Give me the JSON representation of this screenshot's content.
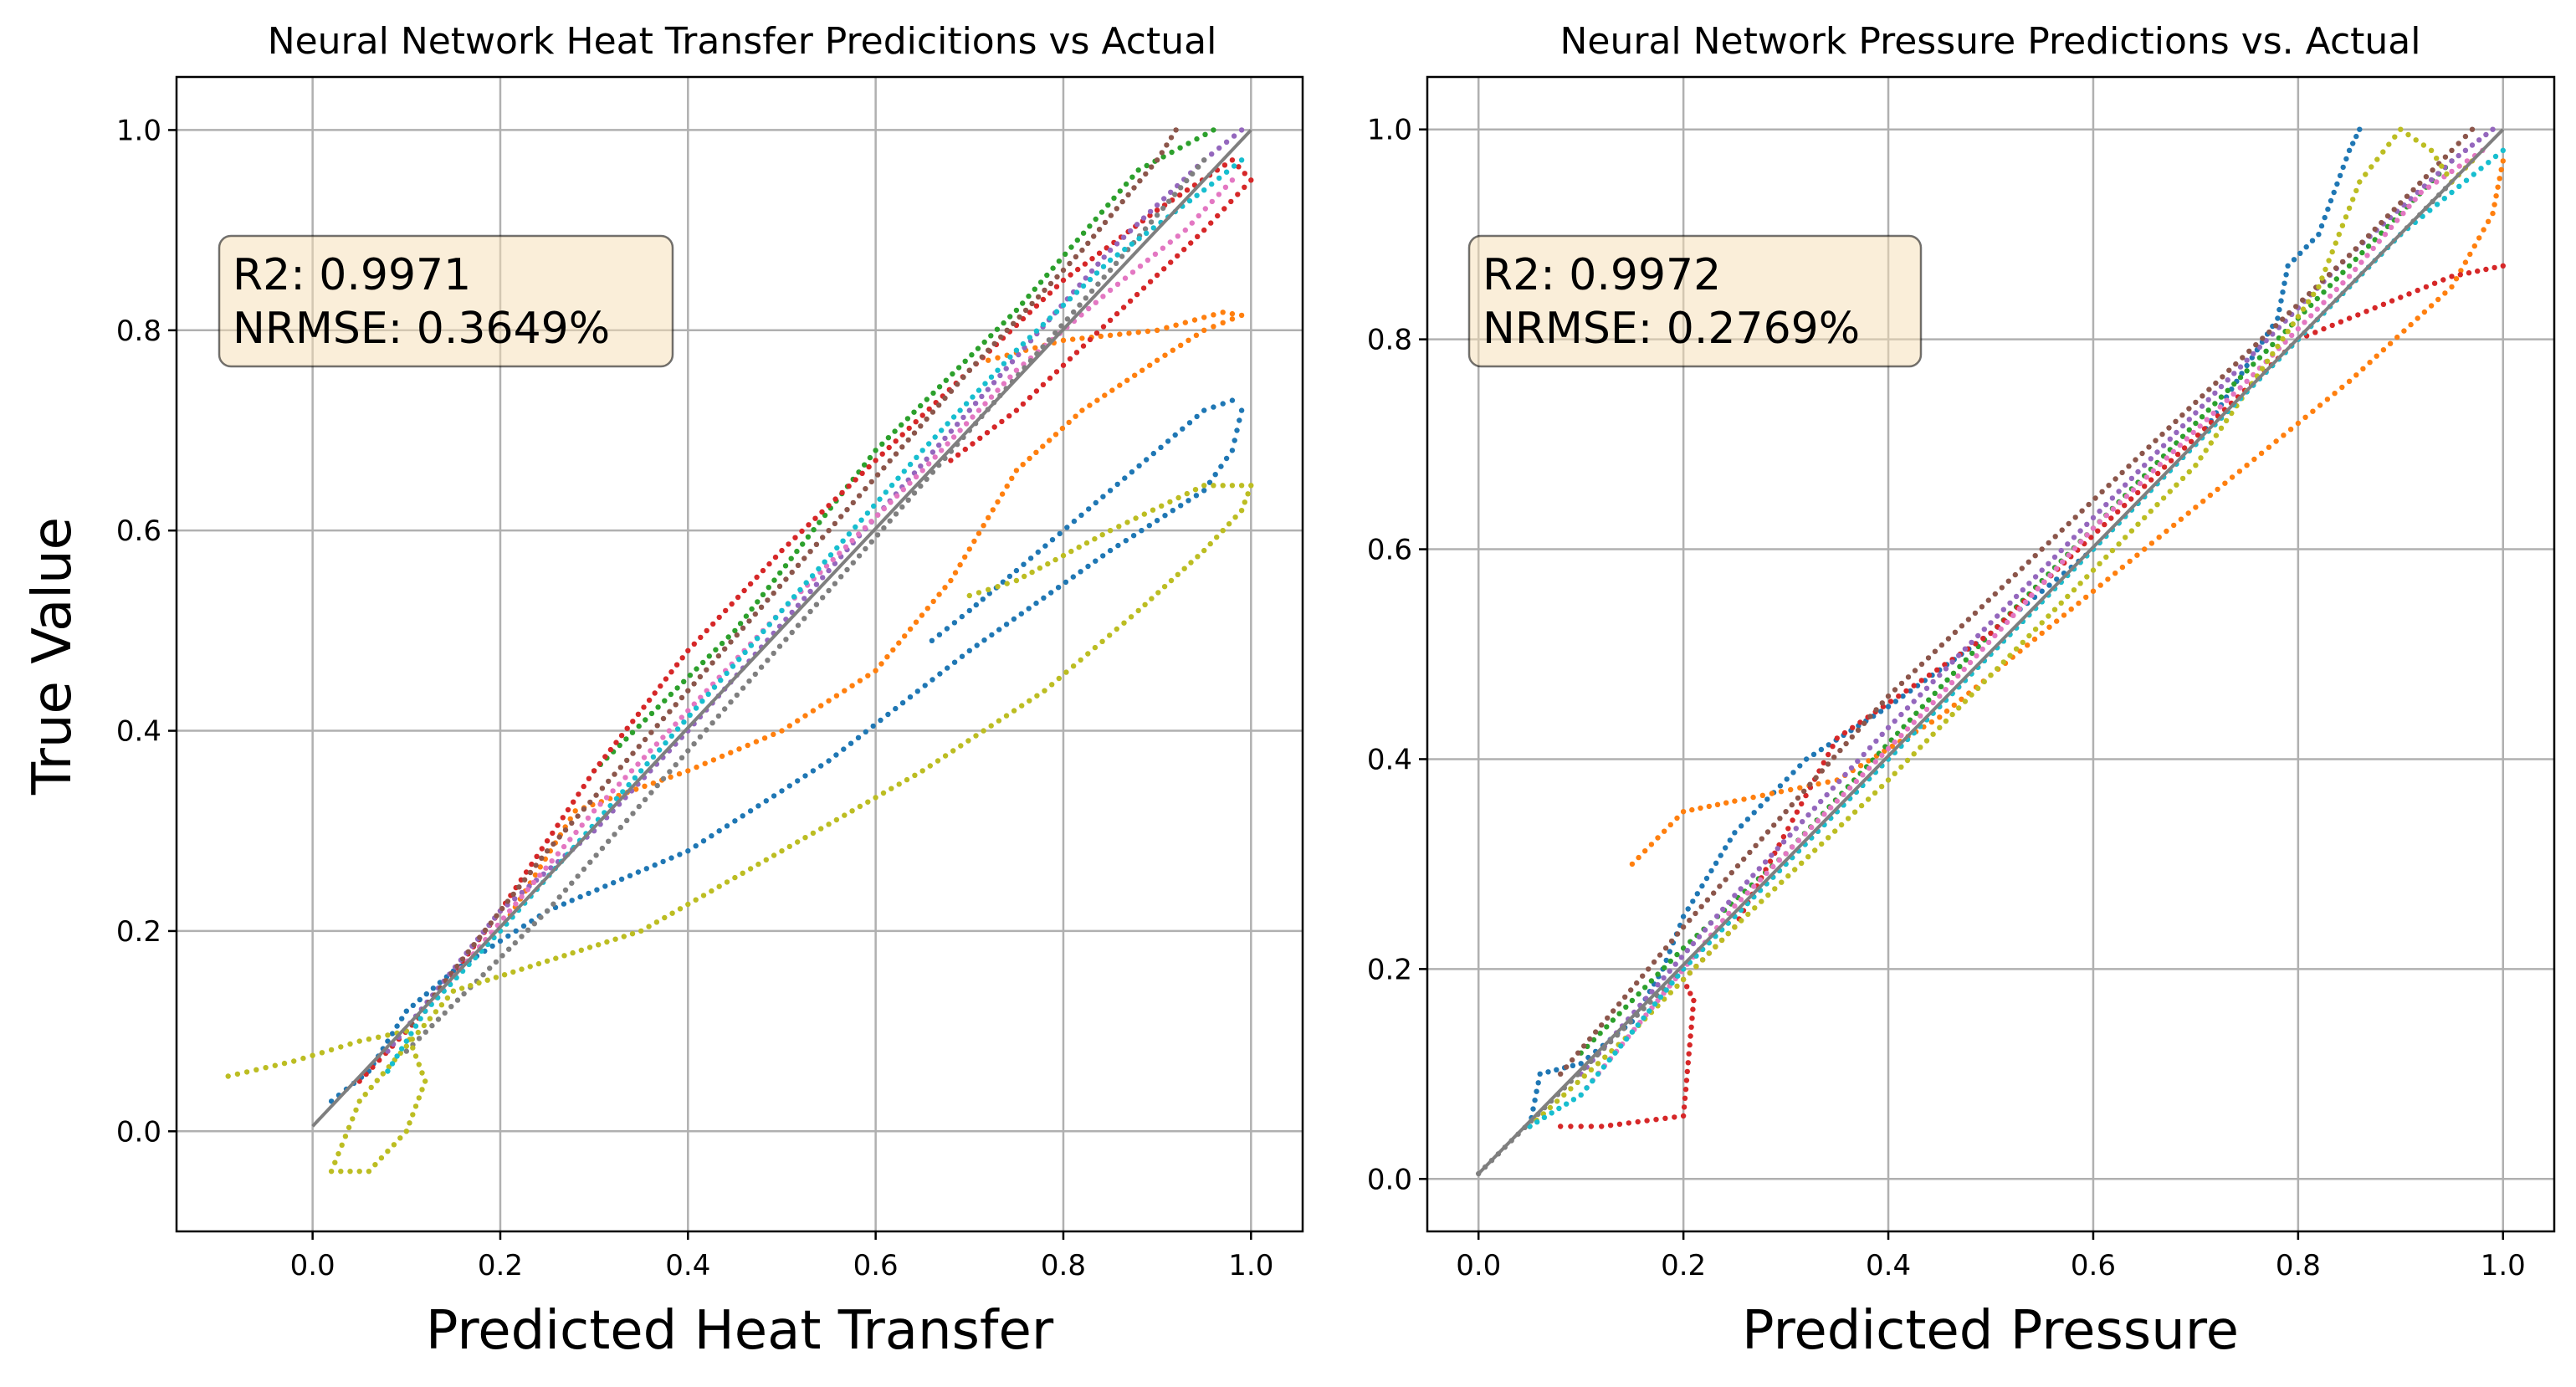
{
  "colors": [
    "#1f77b4",
    "#ff7f0e",
    "#2ca02c",
    "#d62728",
    "#9467bd",
    "#8c564b",
    "#e377c2",
    "#7f7f7f",
    "#bcbd22",
    "#17becf"
  ],
  "grid_color": "#b0b0b0",
  "reference_line_color": "#7f7f7f",
  "annotation_bg": "#f5deb3",
  "chart_data": [
    {
      "type": "scatter",
      "title": "Neural Network Heat Transfer Predicitions vs Actual",
      "xlabel": "Predicted Heat Transfer",
      "ylabel": "True Value",
      "xlim": [
        -0.145,
        1.055
      ],
      "ylim": [
        -0.1,
        1.053
      ],
      "xticks": [
        0.0,
        0.2,
        0.4,
        0.6,
        0.8,
        1.0
      ],
      "xtick_labels": [
        "0.0",
        "0.2",
        "0.4",
        "0.6",
        "0.8",
        "1.0"
      ],
      "yticks": [
        0.0,
        0.2,
        0.4,
        0.6,
        0.8,
        1.0
      ],
      "ytick_labels": [
        "0.0",
        "0.2",
        "0.4",
        "0.6",
        "0.8",
        "1.0"
      ],
      "grid": true,
      "reference_line": [
        [
          0.0,
          0.005
        ],
        [
          1.0,
          1.0
        ]
      ],
      "stats": {
        "r2": "R2: 0.9971",
        "nrmse": "NRMSE: 0.3649%"
      },
      "series": [
        {
          "color_index": 0,
          "points": [
            [
              0.02,
              0.03
            ],
            [
              0.06,
              0.06
            ],
            [
              0.1,
              0.12
            ],
            [
              0.15,
              0.16
            ],
            [
              0.25,
              0.22
            ],
            [
              0.4,
              0.28
            ],
            [
              0.55,
              0.37
            ],
            [
              0.7,
              0.48
            ],
            [
              0.85,
              0.58
            ],
            [
              0.95,
              0.64
            ],
            [
              0.98,
              0.68
            ],
            [
              0.99,
              0.72
            ],
            [
              0.98,
              0.73
            ],
            [
              0.95,
              0.72
            ],
            [
              0.85,
              0.64
            ],
            [
              0.75,
              0.56
            ],
            [
              0.7,
              0.52
            ],
            [
              0.66,
              0.49
            ]
          ]
        },
        {
          "color_index": 1,
          "points": [
            [
              0.2,
              0.2
            ],
            [
              0.28,
              0.32
            ],
            [
              0.4,
              0.36
            ],
            [
              0.5,
              0.4
            ],
            [
              0.6,
              0.46
            ],
            [
              0.68,
              0.55
            ],
            [
              0.75,
              0.66
            ],
            [
              0.82,
              0.72
            ],
            [
              0.9,
              0.77
            ],
            [
              0.95,
              0.8
            ],
            [
              0.99,
              0.815
            ],
            [
              0.97,
              0.818
            ],
            [
              0.9,
              0.8
            ],
            [
              0.8,
              0.79
            ],
            [
              0.72,
              0.77
            ]
          ]
        },
        {
          "color_index": 2,
          "points": [
            [
              0.3,
              0.36
            ],
            [
              0.45,
              0.5
            ],
            [
              0.6,
              0.68
            ],
            [
              0.75,
              0.82
            ],
            [
              0.88,
              0.96
            ],
            [
              0.96,
              1.0
            ]
          ]
        },
        {
          "color_index": 3,
          "points": [
            [
              0.05,
              0.05
            ],
            [
              0.12,
              0.12
            ],
            [
              0.2,
              0.22
            ],
            [
              0.3,
              0.36
            ],
            [
              0.4,
              0.48
            ],
            [
              0.5,
              0.58
            ],
            [
              0.6,
              0.67
            ],
            [
              0.7,
              0.76
            ],
            [
              0.8,
              0.85
            ],
            [
              0.9,
              0.92
            ],
            [
              0.98,
              0.97
            ],
            [
              1.0,
              0.95
            ],
            [
              0.95,
              0.9
            ],
            [
              0.85,
              0.81
            ],
            [
              0.75,
              0.72
            ],
            [
              0.68,
              0.67
            ]
          ]
        },
        {
          "color_index": 4,
          "points": [
            [
              0.08,
              0.08
            ],
            [
              0.2,
              0.22
            ],
            [
              0.3,
              0.3
            ],
            [
              0.4,
              0.4
            ],
            [
              0.55,
              0.56
            ],
            [
              0.7,
              0.72
            ],
            [
              0.85,
              0.88
            ],
            [
              0.95,
              0.97
            ],
            [
              0.99,
              1.0
            ]
          ]
        },
        {
          "color_index": 5,
          "points": [
            [
              0.1,
              0.1
            ],
            [
              0.25,
              0.28
            ],
            [
              0.4,
              0.44
            ],
            [
              0.55,
              0.6
            ],
            [
              0.7,
              0.76
            ],
            [
              0.82,
              0.88
            ],
            [
              0.9,
              0.97
            ],
            [
              0.92,
              1.0
            ]
          ]
        },
        {
          "color_index": 6,
          "points": [
            [
              0.12,
              0.12
            ],
            [
              0.3,
              0.32
            ],
            [
              0.5,
              0.52
            ],
            [
              0.65,
              0.66
            ],
            [
              0.75,
              0.76
            ],
            [
              0.85,
              0.84
            ],
            [
              0.93,
              0.9
            ],
            [
              0.98,
              0.95
            ]
          ]
        },
        {
          "color_index": 7,
          "points": [
            [
              0.1,
              0.08
            ],
            [
              0.25,
              0.22
            ],
            [
              0.4,
              0.38
            ],
            [
              0.55,
              0.54
            ],
            [
              0.7,
              0.7
            ],
            [
              0.85,
              0.86
            ],
            [
              0.95,
              0.97
            ]
          ]
        },
        {
          "color_index": 8,
          "points": [
            [
              -0.09,
              0.055
            ],
            [
              -0.02,
              0.07
            ],
            [
              0.05,
              0.09
            ],
            [
              0.1,
              0.1
            ],
            [
              0.12,
              0.05
            ],
            [
              0.1,
              0.0
            ],
            [
              0.06,
              -0.04
            ],
            [
              0.02,
              -0.04
            ],
            [
              0.05,
              0.03
            ],
            [
              0.15,
              0.14
            ],
            [
              0.25,
              0.17
            ],
            [
              0.35,
              0.2
            ],
            [
              0.5,
              0.28
            ],
            [
              0.65,
              0.36
            ],
            [
              0.78,
              0.44
            ],
            [
              0.88,
              0.52
            ],
            [
              0.95,
              0.58
            ],
            [
              0.99,
              0.62
            ],
            [
              1.0,
              0.645
            ],
            [
              0.95,
              0.645
            ],
            [
              0.85,
              0.6
            ],
            [
              0.75,
              0.55
            ],
            [
              0.7,
              0.535
            ]
          ]
        },
        {
          "color_index": 9,
          "points": [
            [
              0.08,
              0.06
            ],
            [
              0.12,
              0.12
            ],
            [
              0.2,
              0.2
            ],
            [
              0.35,
              0.36
            ],
            [
              0.5,
              0.52
            ],
            [
              0.65,
              0.68
            ],
            [
              0.75,
              0.78
            ],
            [
              0.85,
              0.87
            ],
            [
              0.95,
              0.94
            ],
            [
              0.99,
              0.97
            ]
          ]
        }
      ]
    },
    {
      "type": "scatter",
      "title": "Neural Network Pressure Predictions vs. Actual",
      "xlabel": "Predicted Pressure",
      "ylabel": "",
      "xlim": [
        -0.05,
        1.05
      ],
      "ylim": [
        -0.05,
        1.05
      ],
      "xticks": [
        0.0,
        0.2,
        0.4,
        0.6,
        0.8,
        1.0
      ],
      "xtick_labels": [
        "0.0",
        "0.2",
        "0.4",
        "0.6",
        "0.8",
        "1.0"
      ],
      "yticks": [
        0.0,
        0.2,
        0.4,
        0.6,
        0.8,
        1.0
      ],
      "ytick_labels": [
        "0.0",
        "0.2",
        "0.4",
        "0.6",
        "0.8",
        "1.0"
      ],
      "grid": true,
      "reference_line": [
        [
          0.0,
          0.005
        ],
        [
          1.0,
          1.0
        ]
      ],
      "stats": {
        "r2": "R2: 0.9972",
        "nrmse": "NRMSE: 0.2769%"
      },
      "series": [
        {
          "color_index": 0,
          "points": [
            [
              0.05,
              0.05
            ],
            [
              0.06,
              0.1
            ],
            [
              0.1,
              0.11
            ],
            [
              0.15,
              0.15
            ],
            [
              0.18,
              0.2
            ],
            [
              0.2,
              0.25
            ],
            [
              0.25,
              0.33
            ],
            [
              0.32,
              0.4
            ],
            [
              0.4,
              0.45
            ],
            [
              0.5,
              0.52
            ],
            [
              0.6,
              0.6
            ],
            [
              0.7,
              0.7
            ],
            [
              0.78,
              0.82
            ],
            [
              0.79,
              0.87
            ],
            [
              0.82,
              0.9
            ],
            [
              0.85,
              0.98
            ],
            [
              0.86,
              1.0
            ]
          ]
        },
        {
          "color_index": 1,
          "points": [
            [
              0.15,
              0.3
            ],
            [
              0.2,
              0.35
            ],
            [
              0.25,
              0.36
            ],
            [
              0.35,
              0.38
            ],
            [
              0.45,
              0.44
            ],
            [
              0.55,
              0.52
            ],
            [
              0.65,
              0.6
            ],
            [
              0.75,
              0.68
            ],
            [
              0.85,
              0.76
            ],
            [
              0.95,
              0.85
            ],
            [
              0.99,
              0.92
            ],
            [
              1.0,
              0.97
            ]
          ]
        },
        {
          "color_index": 2,
          "points": [
            [
              0.1,
              0.12
            ],
            [
              0.2,
              0.22
            ],
            [
              0.3,
              0.31
            ],
            [
              0.5,
              0.52
            ],
            [
              0.7,
              0.72
            ],
            [
              0.85,
              0.87
            ],
            [
              0.95,
              0.97
            ]
          ]
        },
        {
          "color_index": 3,
          "points": [
            [
              0.08,
              0.05
            ],
            [
              0.12,
              0.05
            ],
            [
              0.2,
              0.06
            ],
            [
              0.21,
              0.17
            ],
            [
              0.2,
              0.19
            ],
            [
              0.25,
              0.24
            ],
            [
              0.35,
              0.42
            ],
            [
              0.5,
              0.52
            ],
            [
              0.65,
              0.66
            ],
            [
              0.8,
              0.8
            ],
            [
              0.85,
              0.82
            ],
            [
              0.9,
              0.84
            ],
            [
              0.95,
              0.86
            ],
            [
              1.0,
              0.87
            ]
          ]
        },
        {
          "color_index": 4,
          "points": [
            [
              0.1,
              0.1
            ],
            [
              0.25,
              0.27
            ],
            [
              0.4,
              0.43
            ],
            [
              0.55,
              0.58
            ],
            [
              0.7,
              0.73
            ],
            [
              0.85,
              0.88
            ],
            [
              0.95,
              0.97
            ],
            [
              0.99,
              1.0
            ]
          ]
        },
        {
          "color_index": 5,
          "points": [
            [
              0.08,
              0.1
            ],
            [
              0.2,
              0.24
            ],
            [
              0.3,
              0.35
            ],
            [
              0.4,
              0.46
            ],
            [
              0.55,
              0.6
            ],
            [
              0.7,
              0.74
            ],
            [
              0.85,
              0.88
            ],
            [
              0.95,
              0.98
            ],
            [
              0.97,
              1.0
            ]
          ]
        },
        {
          "color_index": 6,
          "points": [
            [
              0.1,
              0.08
            ],
            [
              0.25,
              0.26
            ],
            [
              0.45,
              0.46
            ],
            [
              0.6,
              0.62
            ],
            [
              0.75,
              0.76
            ],
            [
              0.85,
              0.86
            ],
            [
              0.92,
              0.94
            ],
            [
              0.98,
              0.98
            ]
          ]
        },
        {
          "color_index": 7,
          "points": [
            [
              0.0,
              0.005
            ],
            [
              0.2,
              0.2
            ],
            [
              0.4,
              0.4
            ],
            [
              0.6,
              0.6
            ],
            [
              0.8,
              0.8
            ],
            [
              0.95,
              0.95
            ]
          ]
        },
        {
          "color_index": 8,
          "points": [
            [
              0.05,
              0.05
            ],
            [
              0.15,
              0.14
            ],
            [
              0.25,
              0.24
            ],
            [
              0.4,
              0.38
            ],
            [
              0.55,
              0.53
            ],
            [
              0.7,
              0.68
            ],
            [
              0.82,
              0.85
            ],
            [
              0.86,
              0.95
            ],
            [
              0.9,
              1.0
            ],
            [
              0.93,
              0.98
            ],
            [
              0.95,
              0.95
            ],
            [
              0.97,
              0.97
            ]
          ]
        },
        {
          "color_index": 9,
          "points": [
            [
              0.05,
              0.05
            ],
            [
              0.1,
              0.08
            ],
            [
              0.2,
              0.2
            ],
            [
              0.35,
              0.35
            ],
            [
              0.5,
              0.5
            ],
            [
              0.65,
              0.65
            ],
            [
              0.8,
              0.8
            ],
            [
              0.9,
              0.9
            ],
            [
              1.0,
              0.98
            ]
          ]
        }
      ]
    }
  ]
}
